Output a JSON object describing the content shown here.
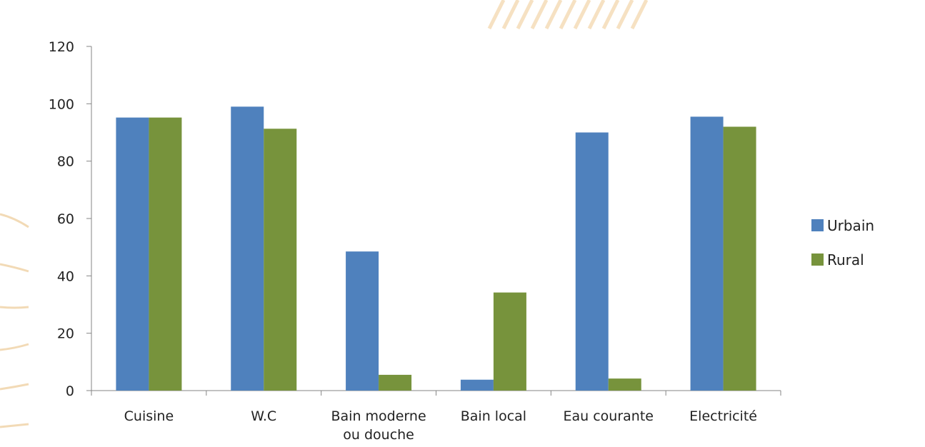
{
  "chart_data": {
    "type": "bar",
    "categories": [
      [
        "Cuisine"
      ],
      [
        "W.C"
      ],
      [
        "Bain moderne",
        "ou douche"
      ],
      [
        "Bain local"
      ],
      [
        "Eau courante"
      ],
      [
        "Electricité"
      ]
    ],
    "series": [
      {
        "name": "Urbain",
        "color": "#4F81BD",
        "values": [
          95.2,
          99,
          48.5,
          3.8,
          90,
          95.5
        ]
      },
      {
        "name": "Rural",
        "color": "#77933C",
        "values": [
          95.2,
          91.3,
          5.5,
          34.2,
          4.2,
          92
        ]
      }
    ],
    "ylim": [
      0,
      120
    ],
    "yticks": [
      0,
      20,
      40,
      60,
      80,
      100,
      120
    ],
    "legend_position": "right",
    "grid": false
  }
}
